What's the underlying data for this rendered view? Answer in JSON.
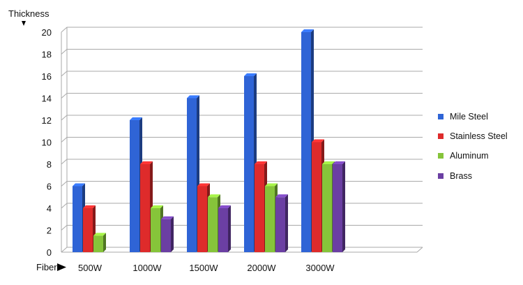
{
  "chart_data": {
    "type": "bar",
    "title": "",
    "ylabel": "Thickness",
    "xlabel": "Fiber",
    "categories": [
      "500W",
      "1000W",
      "1500W",
      "2000W",
      "3000W"
    ],
    "yticks": [
      "0",
      "2",
      "4",
      "6",
      "8",
      "10",
      "12",
      "14",
      "16",
      "18",
      "20"
    ],
    "ylim": [
      0,
      20
    ],
    "grid": true,
    "legend_position": "right",
    "style": "3d",
    "series": [
      {
        "name": "Mile Steel",
        "color": "#2f64d6",
        "values": [
          6,
          12,
          14,
          16,
          20
        ]
      },
      {
        "name": "Stainless Steel",
        "color": "#de2b2b",
        "values": [
          4,
          8,
          6,
          8,
          10
        ]
      },
      {
        "name": "Aluminum",
        "color": "#86c43a",
        "values": [
          1.5,
          4,
          5,
          6,
          8
        ]
      },
      {
        "name": "Brass",
        "color": "#6b3fa3",
        "values": [
          null,
          3,
          4,
          5,
          8
        ]
      }
    ]
  }
}
